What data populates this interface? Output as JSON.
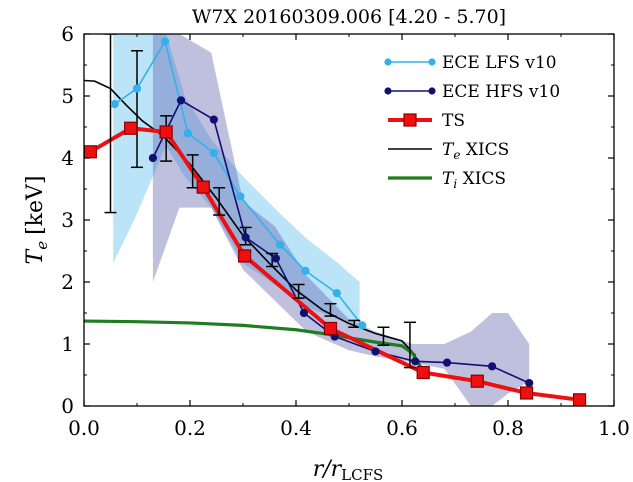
{
  "chart_data": {
    "type": "line",
    "title": "W7X 20160309.006 [4.20 - 5.70]",
    "xlabel": "r/r",
    "xlabel_sub": "LCFS",
    "ylabel": "T",
    "ylabel_sub": "e",
    "ylabel_unit": "[keV]",
    "xlim": [
      0.0,
      1.0
    ],
    "ylim": [
      0,
      6
    ],
    "xticks": [
      "0.0",
      "0.2",
      "0.4",
      "0.6",
      "0.8",
      "1.0"
    ],
    "yticks": [
      "0",
      "1",
      "2",
      "3",
      "4",
      "5",
      "6"
    ],
    "legend_position": "top-right",
    "bands": [
      {
        "series": "ECE LFS v10",
        "color": "#4db8f0",
        "x": [
          0.055,
          0.1,
          0.155,
          0.19,
          0.24,
          0.3,
          0.37,
          0.42,
          0.48,
          0.52
        ],
        "lower": [
          2.3,
          3.1,
          4.2,
          3.7,
          3.2,
          2.3,
          1.9,
          1.6,
          1.4,
          1.3
        ],
        "upper": [
          6.0,
          6.0,
          6.0,
          5.0,
          4.3,
          3.7,
          3.1,
          2.7,
          2.3,
          2.0
        ]
      },
      {
        "series": "ECE HFS v10",
        "color": "#5858a8",
        "x": [
          0.13,
          0.18,
          0.24,
          0.3,
          0.36,
          0.42,
          0.5,
          0.55,
          0.62,
          0.68,
          0.73,
          0.77,
          0.8,
          0.84
        ],
        "lower": [
          2.0,
          3.2,
          3.2,
          2.2,
          1.7,
          1.2,
          0.9,
          0.8,
          0.7,
          0.6,
          0.0,
          0.0,
          0.2,
          0.4
        ],
        "upper": [
          6.0,
          6.0,
          5.7,
          3.3,
          2.9,
          2.1,
          1.4,
          1.2,
          1.0,
          1.0,
          1.2,
          1.5,
          1.5,
          1.0
        ]
      }
    ],
    "series": [
      {
        "name": "ECE LFS v10",
        "color": "#33b0ee",
        "marker": "circle",
        "points": [
          [
            0.058,
            4.87
          ],
          [
            0.1,
            5.12
          ],
          [
            0.153,
            5.88
          ],
          [
            0.196,
            4.4
          ],
          [
            0.245,
            4.08
          ],
          [
            0.295,
            3.38
          ],
          [
            0.37,
            2.6
          ],
          [
            0.418,
            2.18
          ],
          [
            0.477,
            1.82
          ],
          [
            0.525,
            1.3
          ]
        ]
      },
      {
        "name": "ECE HFS v10",
        "color": "#101070",
        "marker": "circle",
        "points": [
          [
            0.13,
            4.0
          ],
          [
            0.183,
            4.93
          ],
          [
            0.245,
            4.62
          ],
          [
            0.305,
            2.72
          ],
          [
            0.362,
            2.38
          ],
          [
            0.415,
            1.5
          ],
          [
            0.473,
            1.12
          ],
          [
            0.55,
            0.88
          ],
          [
            0.625,
            0.72
          ],
          [
            0.685,
            0.7
          ],
          [
            0.77,
            0.64
          ],
          [
            0.84,
            0.37
          ]
        ]
      },
      {
        "name": "TS",
        "color": "#ee1010",
        "marker": "square",
        "points": [
          [
            0.012,
            4.1
          ],
          [
            0.088,
            4.48
          ],
          [
            0.155,
            4.42
          ],
          [
            0.225,
            3.53
          ],
          [
            0.303,
            2.42
          ],
          [
            0.465,
            1.25
          ],
          [
            0.64,
            0.54
          ],
          [
            0.742,
            0.4
          ],
          [
            0.835,
            0.21
          ],
          [
            0.935,
            0.1
          ]
        ]
      },
      {
        "name": "T_e XICS",
        "label_main": "T",
        "label_sub": "e",
        "label_rest": " XICS",
        "color": "#000000",
        "marker": "none",
        "points": [
          [
            0.0,
            5.25
          ],
          [
            0.02,
            5.24
          ],
          [
            0.05,
            5.12
          ],
          [
            0.08,
            4.85
          ],
          [
            0.11,
            4.6
          ],
          [
            0.15,
            4.35
          ],
          [
            0.2,
            3.9
          ],
          [
            0.25,
            3.35
          ],
          [
            0.3,
            2.75
          ],
          [
            0.35,
            2.3
          ],
          [
            0.4,
            1.87
          ],
          [
            0.45,
            1.55
          ],
          [
            0.5,
            1.33
          ],
          [
            0.55,
            1.17
          ],
          [
            0.6,
            1.05
          ],
          [
            0.625,
            0.82
          ]
        ]
      },
      {
        "name": "T_i XICS",
        "label_main": "T",
        "label_sub": "i",
        "label_rest": " XICS",
        "color": "#1e7d1e",
        "marker": "none",
        "points": [
          [
            0.0,
            1.37
          ],
          [
            0.1,
            1.36
          ],
          [
            0.2,
            1.34
          ],
          [
            0.3,
            1.3
          ],
          [
            0.4,
            1.23
          ],
          [
            0.45,
            1.17
          ],
          [
            0.5,
            1.1
          ],
          [
            0.55,
            1.03
          ],
          [
            0.6,
            0.97
          ],
          [
            0.62,
            0.85
          ],
          [
            0.64,
            0.56
          ]
        ]
      }
    ],
    "errorbars": {
      "series": "T_e XICS",
      "color": "#000000",
      "points": [
        {
          "x": 0.05,
          "y": 4.9,
          "lo": 3.12,
          "hi": 6.0
        },
        {
          "x": 0.1,
          "y": 4.62,
          "lo": 3.85,
          "hi": 5.73
        },
        {
          "x": 0.155,
          "y": 4.35,
          "lo": 3.95,
          "hi": 4.68
        },
        {
          "x": 0.205,
          "y": 3.8,
          "lo": 3.52,
          "hi": 4.05
        },
        {
          "x": 0.255,
          "y": 3.3,
          "lo": 3.08,
          "hi": 3.52
        },
        {
          "x": 0.305,
          "y": 2.75,
          "lo": 2.6,
          "hi": 2.88
        },
        {
          "x": 0.355,
          "y": 2.35,
          "lo": 2.25,
          "hi": 2.46
        },
        {
          "x": 0.405,
          "y": 1.85,
          "lo": 1.74,
          "hi": 1.96
        },
        {
          "x": 0.465,
          "y": 1.55,
          "lo": 1.45,
          "hi": 1.65
        },
        {
          "x": 0.51,
          "y": 1.33,
          "lo": 1.27,
          "hi": 1.38
        },
        {
          "x": 0.565,
          "y": 1.15,
          "lo": 0.98,
          "hi": 1.27
        },
        {
          "x": 0.615,
          "y": 1.0,
          "lo": 0.62,
          "hi": 1.35
        }
      ]
    }
  }
}
